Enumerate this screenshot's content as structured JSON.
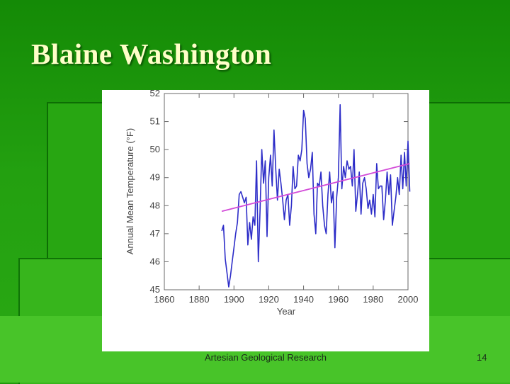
{
  "slide": {
    "title": "Blaine Washington",
    "footer": "Artesian Geological Research",
    "page_number": "14"
  },
  "chart_data": {
    "type": "line",
    "title": "",
    "xlabel": "Year",
    "ylabel": "Annual Mean Temperature (°F)",
    "xlim": [
      1860,
      2000
    ],
    "ylim": [
      45,
      52
    ],
    "x_ticks": [
      1860,
      1880,
      1900,
      1920,
      1940,
      1960,
      1980,
      2000
    ],
    "y_ticks": [
      45,
      46,
      47,
      48,
      49,
      50,
      51,
      52
    ],
    "grid": false,
    "series": [
      {
        "color": "#2d2dc8",
        "x": [
          1893,
          1894,
          1895,
          1896,
          1897,
          1898,
          1899,
          1900,
          1901,
          1902,
          1903,
          1904,
          1905,
          1906,
          1907,
          1908,
          1909,
          1910,
          1911,
          1912,
          1913,
          1914,
          1915,
          1916,
          1917,
          1918,
          1919,
          1920,
          1921,
          1922,
          1923,
          1924,
          1925,
          1926,
          1927,
          1928,
          1929,
          1930,
          1931,
          1932,
          1933,
          1934,
          1935,
          1936,
          1937,
          1938,
          1939,
          1940,
          1941,
          1942,
          1943,
          1944,
          1945,
          1946,
          1947,
          1948,
          1949,
          1950,
          1951,
          1952,
          1953,
          1954,
          1955,
          1956,
          1957,
          1958,
          1959,
          1960,
          1961,
          1962,
          1963,
          1964,
          1965,
          1966,
          1967,
          1968,
          1969,
          1970,
          1971,
          1972,
          1973,
          1974,
          1975,
          1976,
          1977,
          1978,
          1979,
          1980,
          1981,
          1982,
          1983,
          1984,
          1985,
          1986,
          1987,
          1988,
          1989,
          1990,
          1991,
          1992,
          1993,
          1994,
          1995,
          1996,
          1997,
          1998,
          1999,
          2000,
          2001
        ],
        "values": [
          47.1,
          47.3,
          46.1,
          45.6,
          45.1,
          45.5,
          46.0,
          46.5,
          47.0,
          47.4,
          48.4,
          48.5,
          48.3,
          48.1,
          48.3,
          46.6,
          47.4,
          46.8,
          47.6,
          47.3,
          49.6,
          46.0,
          47.8,
          50.0,
          48.8,
          49.6,
          46.9,
          49.0,
          49.8,
          48.7,
          50.7,
          49.3,
          48.2,
          49.3,
          48.8,
          48.2,
          47.5,
          48.2,
          48.4,
          47.3,
          48.0,
          49.4,
          48.6,
          48.7,
          49.8,
          49.6,
          50.0,
          51.4,
          51.1,
          49.5,
          49.0,
          49.3,
          49.9,
          47.7,
          47.0,
          48.8,
          48.7,
          49.2,
          48.0,
          47.3,
          47.0,
          48.4,
          49.2,
          48.1,
          48.5,
          46.5,
          48.3,
          49.0,
          51.6,
          48.6,
          49.4,
          49.0,
          49.6,
          49.3,
          49.4,
          48.7,
          50.0,
          47.8,
          48.4,
          49.2,
          47.7,
          48.8,
          49.0,
          48.6,
          47.9,
          48.2,
          47.7,
          48.4,
          47.6,
          49.5,
          48.6,
          48.7,
          48.7,
          47.5,
          48.2,
          49.2,
          48.4,
          49.1,
          47.3,
          47.8,
          48.3,
          49.0,
          48.4,
          49.8,
          48.6,
          49.9,
          48.7,
          50.3,
          48.5
        ]
      },
      {
        "color": "#d24bd8",
        "x": [
          1893,
          2001
        ],
        "values": [
          47.8,
          49.5
        ]
      }
    ]
  }
}
